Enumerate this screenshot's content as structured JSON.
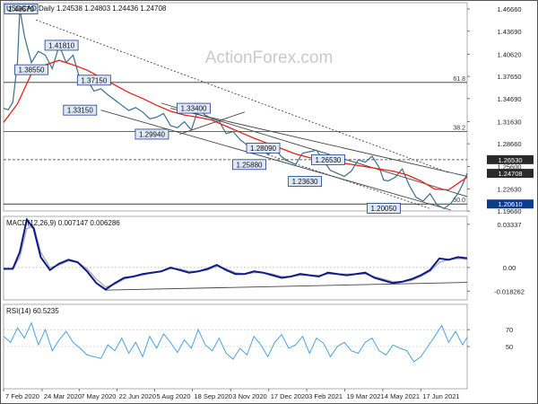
{
  "chart_data": [
    {
      "panel": "price",
      "type": "line",
      "title": "USDCAD,Daily  1.24538 1.24803 1.24436 1.24708",
      "watermark": "ActionForex.com",
      "ylim": [
        1.1968,
        1.475
      ],
      "y_ticks": [
        "1.46660",
        "1.43690",
        "1.40620",
        "1.37650",
        "1.34690",
        "1.31630",
        "1.28660",
        "1.25600",
        "1.22630",
        "1.19660"
      ],
      "y_tick_values": [
        1.4666,
        1.4369,
        1.4062,
        1.3765,
        1.3469,
        1.3163,
        1.2866,
        1.256,
        1.2263,
        1.1966
      ],
      "current_price": {
        "label": "1.24708",
        "value": 1.24708
      },
      "horizontal_levels": [
        {
          "label": "1.26530",
          "value": 1.2653,
          "style": "dashed",
          "tag": "dark"
        },
        {
          "label": "1.20610",
          "value": 1.2061,
          "style": "solid",
          "tag": "blue"
        }
      ],
      "fib_levels": [
        {
          "label": "61.8",
          "value": 1.3685
        },
        {
          "label": "38.2",
          "value": 1.3031
        },
        {
          "label": "50.0",
          "value": 1.2061
        }
      ],
      "annotations": [
        {
          "label": "1.46670",
          "x": 0.035,
          "y": 1.4667
        },
        {
          "label": "1.38550",
          "x": 0.06,
          "y": 1.3855
        },
        {
          "label": "1.41810",
          "x": 0.125,
          "y": 1.4181
        },
        {
          "label": "1.37150",
          "x": 0.195,
          "y": 1.3715
        },
        {
          "label": "1.33150",
          "x": 0.165,
          "y": 1.3315
        },
        {
          "label": "1.29940",
          "x": 0.32,
          "y": 1.2994
        },
        {
          "label": "1.33400",
          "x": 0.41,
          "y": 1.334
        },
        {
          "label": "1.28090",
          "x": 0.56,
          "y": 1.2809
        },
        {
          "label": "1.25880",
          "x": 0.53,
          "y": 1.2588
        },
        {
          "label": "1.26530",
          "x": 0.7,
          "y": 1.2653
        },
        {
          "label": "1.23630",
          "x": 0.65,
          "y": 1.2363
        },
        {
          "label": "1.20050",
          "x": 0.82,
          "y": 1.2005
        }
      ],
      "price_x": [
        0,
        0.01,
        0.02,
        0.03,
        0.035,
        0.045,
        0.06,
        0.075,
        0.09,
        0.105,
        0.12,
        0.135,
        0.15,
        0.165,
        0.18,
        0.195,
        0.21,
        0.225,
        0.24,
        0.255,
        0.27,
        0.285,
        0.3,
        0.315,
        0.33,
        0.345,
        0.36,
        0.375,
        0.39,
        0.405,
        0.42,
        0.435,
        0.45,
        0.465,
        0.48,
        0.495,
        0.51,
        0.525,
        0.54,
        0.555,
        0.57,
        0.585,
        0.6,
        0.615,
        0.63,
        0.645,
        0.66,
        0.675,
        0.69,
        0.705,
        0.72,
        0.735,
        0.75,
        0.765,
        0.78,
        0.795,
        0.81,
        0.82,
        0.83,
        0.845,
        0.86,
        0.875,
        0.89,
        0.905,
        0.92,
        0.935,
        0.95,
        0.965,
        0.98,
        0.99,
        1.0
      ],
      "price": [
        1.334,
        1.332,
        1.342,
        1.395,
        1.4667,
        1.43,
        1.395,
        1.41,
        1.405,
        1.387,
        1.418,
        1.395,
        1.405,
        1.372,
        1.372,
        1.357,
        1.36,
        1.352,
        1.345,
        1.338,
        1.331,
        1.335,
        1.329,
        1.32,
        1.322,
        1.327,
        1.311,
        1.308,
        1.316,
        1.305,
        1.333,
        1.325,
        1.32,
        1.317,
        1.3,
        1.303,
        1.292,
        1.285,
        1.276,
        1.282,
        1.272,
        1.28,
        1.269,
        1.263,
        1.259,
        1.274,
        1.276,
        1.278,
        1.264,
        1.251,
        1.247,
        1.243,
        1.25,
        1.265,
        1.262,
        1.27,
        1.255,
        1.238,
        1.237,
        1.242,
        1.253,
        1.231,
        1.215,
        1.21,
        1.22,
        1.205,
        1.2,
        1.207,
        1.22,
        1.232,
        1.247
      ],
      "ma_x": [
        0,
        0.03,
        0.06,
        0.09,
        0.12,
        0.15,
        0.18,
        0.21,
        0.24,
        0.27,
        0.3,
        0.33,
        0.36,
        0.39,
        0.42,
        0.45,
        0.48,
        0.51,
        0.54,
        0.57,
        0.6,
        0.63,
        0.66,
        0.69,
        0.72,
        0.75,
        0.78,
        0.81,
        0.84,
        0.87,
        0.9,
        0.93,
        0.96,
        1.0
      ],
      "ma": [
        1.315,
        1.34,
        1.38,
        1.392,
        1.398,
        1.392,
        1.385,
        1.375,
        1.365,
        1.355,
        1.347,
        1.338,
        1.33,
        1.325,
        1.322,
        1.318,
        1.31,
        1.302,
        1.294,
        1.287,
        1.28,
        1.273,
        1.268,
        1.265,
        1.262,
        1.259,
        1.256,
        1.253,
        1.25,
        1.245,
        1.237,
        1.226,
        1.225,
        1.242
      ],
      "trendlines": [
        {
          "name": "dotted-resistance",
          "style": "dotted",
          "points": [
            [
              0.07,
              1.452
            ],
            [
              0.96,
              1.248
            ]
          ]
        },
        {
          "name": "channel-upper",
          "style": "solid",
          "points": [
            [
              0.36,
              1.334
            ],
            [
              1.0,
              1.243
            ]
          ]
        },
        {
          "name": "channel-lower",
          "style": "solid",
          "points": [
            [
              0.21,
              1.3315
            ],
            [
              0.965,
              1.198
            ]
          ]
        },
        {
          "name": "channel-middle",
          "style": "solid",
          "points": [
            [
              0.34,
              1.341
            ],
            [
              1.0,
              1.216
            ]
          ]
        },
        {
          "name": "support-line",
          "style": "solid",
          "points": [
            [
              0.38,
              1.2994
            ],
            [
              0.52,
              1.329
            ]
          ]
        },
        {
          "name": "dotted-support",
          "style": "dotted",
          "points": [
            [
              0.57,
              1.272
            ],
            [
              0.92,
              1.2
            ]
          ]
        }
      ]
    },
    {
      "panel": "macd",
      "type": "line",
      "title": "MACD(12,26,9) 0.007147 0.006286",
      "ylim": [
        -0.025,
        0.0395
      ],
      "y_ticks": [
        "0.03337",
        "0.00",
        "-0.018262"
      ],
      "y_tick_values": [
        0.03337,
        0.0,
        -0.018262
      ],
      "x": [
        0,
        0.02,
        0.035,
        0.05,
        0.065,
        0.08,
        0.1,
        0.12,
        0.14,
        0.16,
        0.18,
        0.2,
        0.22,
        0.24,
        0.26,
        0.28,
        0.3,
        0.32,
        0.34,
        0.36,
        0.38,
        0.4,
        0.42,
        0.44,
        0.46,
        0.48,
        0.5,
        0.52,
        0.54,
        0.56,
        0.58,
        0.6,
        0.62,
        0.64,
        0.66,
        0.68,
        0.7,
        0.72,
        0.74,
        0.76,
        0.78,
        0.8,
        0.82,
        0.84,
        0.86,
        0.88,
        0.9,
        0.92,
        0.94,
        0.96,
        0.98,
        1.0
      ],
      "macd": [
        -0.001,
        -0.001,
        0.012,
        0.037,
        0.03,
        0.008,
        -0.002,
        0.003,
        0.006,
        0.004,
        -0.003,
        -0.012,
        -0.017,
        -0.012,
        -0.008,
        -0.007,
        -0.005,
        -0.004,
        -0.003,
        0.0,
        -0.002,
        -0.004,
        -0.003,
        -0.001,
        0.002,
        -0.002,
        -0.005,
        -0.005,
        -0.003,
        -0.004,
        -0.006,
        -0.008,
        -0.007,
        -0.005,
        -0.006,
        -0.007,
        -0.004,
        -0.005,
        -0.006,
        -0.005,
        -0.004,
        -0.008,
        -0.01,
        -0.012,
        -0.011,
        -0.009,
        -0.006,
        -0.002,
        0.007,
        0.006,
        0.008,
        0.0072
      ],
      "signal": [
        -0.0015,
        -0.0012,
        0.008,
        0.03,
        0.032,
        0.012,
        0.0,
        0.002,
        0.005,
        0.004,
        -0.001,
        -0.009,
        -0.015,
        -0.013,
        -0.009,
        -0.007,
        -0.006,
        -0.004,
        -0.003,
        -0.001,
        -0.001,
        -0.003,
        -0.003,
        -0.002,
        0.001,
        -0.001,
        -0.004,
        -0.005,
        -0.004,
        -0.004,
        -0.005,
        -0.007,
        -0.007,
        -0.006,
        -0.006,
        -0.006,
        -0.005,
        -0.005,
        -0.005,
        -0.005,
        -0.005,
        -0.007,
        -0.009,
        -0.011,
        -0.011,
        -0.01,
        -0.007,
        -0.003,
        0.004,
        0.006,
        0.007,
        0.0063
      ],
      "trendline": [
        [
          0.22,
          -0.0175
        ],
        [
          1.0,
          -0.0115
        ]
      ]
    },
    {
      "panel": "rsi",
      "type": "line",
      "title": "RSI(14) 60.5235",
      "ylim": [
        0,
        100
      ],
      "y_ticks": [
        "70",
        "50"
      ],
      "y_tick_values": [
        70,
        50
      ],
      "x": [
        0,
        0.015,
        0.03,
        0.045,
        0.06,
        0.075,
        0.09,
        0.105,
        0.12,
        0.135,
        0.15,
        0.165,
        0.18,
        0.195,
        0.21,
        0.225,
        0.24,
        0.255,
        0.27,
        0.285,
        0.3,
        0.315,
        0.33,
        0.345,
        0.36,
        0.375,
        0.39,
        0.405,
        0.42,
        0.435,
        0.45,
        0.465,
        0.48,
        0.495,
        0.51,
        0.525,
        0.54,
        0.555,
        0.57,
        0.585,
        0.6,
        0.615,
        0.63,
        0.645,
        0.66,
        0.675,
        0.69,
        0.705,
        0.72,
        0.735,
        0.75,
        0.765,
        0.78,
        0.795,
        0.81,
        0.825,
        0.84,
        0.855,
        0.87,
        0.885,
        0.9,
        0.915,
        0.93,
        0.945,
        0.96,
        0.975,
        0.99,
        1.0
      ],
      "values": [
        62,
        55,
        72,
        60,
        78,
        52,
        70,
        45,
        58,
        68,
        55,
        48,
        40,
        38,
        36,
        52,
        45,
        60,
        42,
        55,
        38,
        62,
        48,
        65,
        55,
        43,
        58,
        48,
        70,
        52,
        45,
        60,
        42,
        35,
        48,
        40,
        62,
        52,
        38,
        55,
        64,
        48,
        52,
        62,
        42,
        60,
        54,
        38,
        50,
        55,
        45,
        42,
        55,
        60,
        45,
        40,
        52,
        48,
        45,
        32,
        38,
        50,
        62,
        75,
        55,
        68,
        52,
        61
      ]
    }
  ],
  "x_axis": {
    "labels": [
      "7 Feb 2020",
      "24 Mar 2020",
      "7 May 2020",
      "22 Jun 2020",
      "5 Aug 2020",
      "18 Sep 2020",
      "3 Nov 2020",
      "17 Dec 2020",
      "3 Feb 2021",
      "19 Mar 2021",
      "4 May 2021",
      "17 Jun 2021"
    ],
    "positions": [
      0.0,
      0.083,
      0.163,
      0.245,
      0.326,
      0.407,
      0.49,
      0.572,
      0.654,
      0.736,
      0.818,
      0.9
    ]
  },
  "colors": {
    "price": "#3a6e8c",
    "ma": "#e8201a",
    "macd": "#0d1a8a",
    "signal": "#b0b0b0",
    "rsi": "#4aa3df",
    "trend": "#444444",
    "tag_dark": "#2a2a2a",
    "tag_blue": "#0b3e8a",
    "annot_bg": "#dfe8f5",
    "annot_border": "#1a3d8f",
    "watermark": "#c9c9c9"
  }
}
